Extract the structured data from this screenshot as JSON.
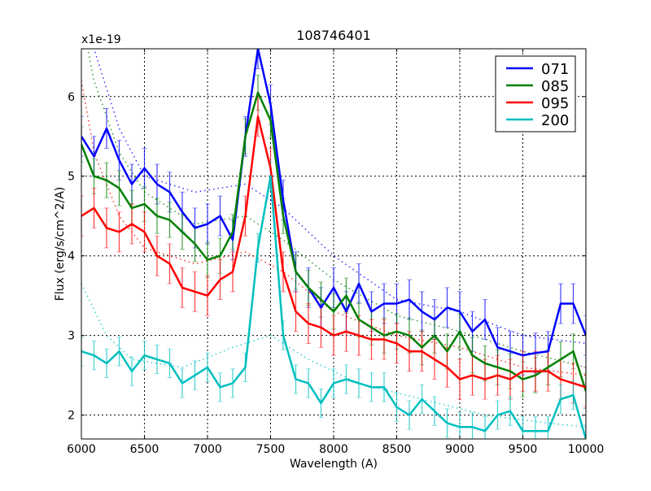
{
  "chart_data": {
    "type": "line",
    "title": "108746401",
    "xlabel": "Wavelength (A)",
    "ylabel": "Flux (erg/s/cm^2/A)",
    "y_offset_label": "x1e-19",
    "xlim": [
      6000,
      10000
    ],
    "ylim": [
      1.7,
      6.6
    ],
    "xticks": [
      "6000",
      "6500",
      "7000",
      "7500",
      "8000",
      "8500",
      "9000",
      "9500",
      "10000"
    ],
    "yticks": [
      "2",
      "3",
      "4",
      "5",
      "6"
    ],
    "grid": true,
    "legend_position": "top-right",
    "x": [
      6000,
      6100,
      6200,
      6300,
      6400,
      6500,
      6600,
      6700,
      6800,
      6900,
      7000,
      7100,
      7200,
      7300,
      7400,
      7500,
      7600,
      7700,
      7800,
      7900,
      8000,
      8100,
      8200,
      8300,
      8400,
      8500,
      8600,
      8700,
      8800,
      8900,
      9000,
      9100,
      9200,
      9300,
      9400,
      9500,
      9600,
      9700,
      9800,
      9900,
      10000
    ],
    "series": [
      {
        "name": "071",
        "color": "#0000ff",
        "error": 0.25,
        "values": [
          5.5,
          5.25,
          5.6,
          5.2,
          4.9,
          5.1,
          4.9,
          4.8,
          4.55,
          4.35,
          4.4,
          4.5,
          4.2,
          5.5,
          6.6,
          5.9,
          4.7,
          3.8,
          3.6,
          3.35,
          3.6,
          3.3,
          3.65,
          3.3,
          3.4,
          3.4,
          3.45,
          3.3,
          3.2,
          3.35,
          3.3,
          3.05,
          3.2,
          2.85,
          2.8,
          2.75,
          2.78,
          2.8,
          3.4,
          3.4,
          3.0
        ],
        "model_x": [
          6000,
          6100,
          6300,
          6500,
          6900,
          7300,
          7600,
          8000,
          8500,
          9000,
          9500,
          10000
        ],
        "model": [
          7.5,
          6.6,
          5.6,
          5.0,
          4.8,
          4.9,
          4.6,
          4.0,
          3.45,
          3.3,
          3.0,
          2.9
        ]
      },
      {
        "name": "085",
        "color": "#008000",
        "error": 0.22,
        "values": [
          5.4,
          5.0,
          4.95,
          4.85,
          4.6,
          4.65,
          4.5,
          4.45,
          4.3,
          4.15,
          3.95,
          4.0,
          4.3,
          5.5,
          6.05,
          5.7,
          4.5,
          3.8,
          3.6,
          3.45,
          3.3,
          3.5,
          3.2,
          3.1,
          3.0,
          3.05,
          3.0,
          2.85,
          3.0,
          2.8,
          3.05,
          2.75,
          2.65,
          2.6,
          2.55,
          2.45,
          2.5,
          2.6,
          2.7,
          2.8,
          2.3
        ],
        "model_x": [
          6000,
          6100,
          6300,
          6500,
          6900,
          7300,
          7600,
          8000,
          8500,
          9000,
          9500,
          10000
        ],
        "model": [
          7.0,
          6.2,
          5.3,
          4.8,
          4.4,
          4.5,
          4.2,
          3.7,
          3.25,
          3.05,
          2.8,
          2.6
        ]
      },
      {
        "name": "095",
        "color": "#ff0000",
        "error": 0.25,
        "values": [
          4.5,
          4.6,
          4.35,
          4.3,
          4.4,
          4.3,
          4.0,
          3.9,
          3.6,
          3.55,
          3.5,
          3.7,
          3.8,
          4.5,
          5.75,
          5.1,
          3.8,
          3.3,
          3.15,
          3.1,
          3.0,
          3.05,
          3.0,
          2.95,
          2.95,
          2.9,
          2.8,
          2.8,
          2.7,
          2.6,
          2.45,
          2.5,
          2.45,
          2.5,
          2.45,
          2.55,
          2.55,
          2.55,
          2.45,
          2.4,
          2.35
        ],
        "model_x": [
          6000,
          6100,
          6300,
          6500,
          6900,
          7300,
          7600,
          8000,
          8500,
          9000,
          9500,
          10000
        ],
        "model": [
          6.2,
          5.3,
          4.5,
          4.1,
          3.9,
          4.05,
          3.8,
          3.3,
          3.0,
          2.85,
          2.6,
          2.5
        ]
      },
      {
        "name": "200",
        "color": "#00bfbf",
        "error": 0.18,
        "values": [
          2.8,
          2.75,
          2.65,
          2.8,
          2.55,
          2.75,
          2.7,
          2.65,
          2.4,
          2.5,
          2.6,
          2.35,
          2.4,
          2.6,
          4.1,
          5.0,
          3.0,
          2.45,
          2.4,
          2.15,
          2.4,
          2.45,
          2.4,
          2.35,
          2.35,
          2.1,
          2.0,
          2.2,
          2.05,
          1.9,
          1.85,
          1.85,
          1.8,
          2.0,
          2.05,
          1.8,
          1.8,
          1.8,
          2.2,
          2.25,
          1.7
        ],
        "model_x": [
          6000,
          6200,
          6400,
          6800,
          7200,
          7500,
          7800,
          8200,
          8700,
          9200,
          9700,
          10000
        ],
        "model": [
          3.65,
          3.0,
          2.7,
          2.6,
          2.85,
          3.0,
          2.7,
          2.4,
          2.2,
          2.0,
          1.9,
          1.85
        ]
      }
    ]
  }
}
